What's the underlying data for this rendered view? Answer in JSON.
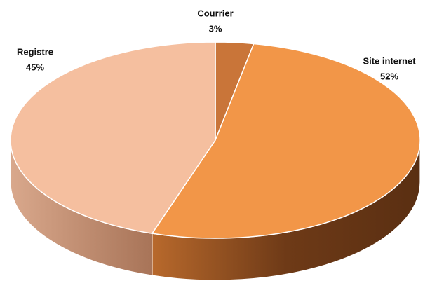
{
  "chart_data": {
    "type": "pie",
    "categories": [
      "Courrier",
      "Site internet",
      "Registre"
    ],
    "values": [
      3,
      52,
      45
    ],
    "value_labels": [
      "3%",
      "52%",
      "45%"
    ],
    "colors": [
      "#c97539",
      "#f29648",
      "#f5bf9f"
    ]
  }
}
